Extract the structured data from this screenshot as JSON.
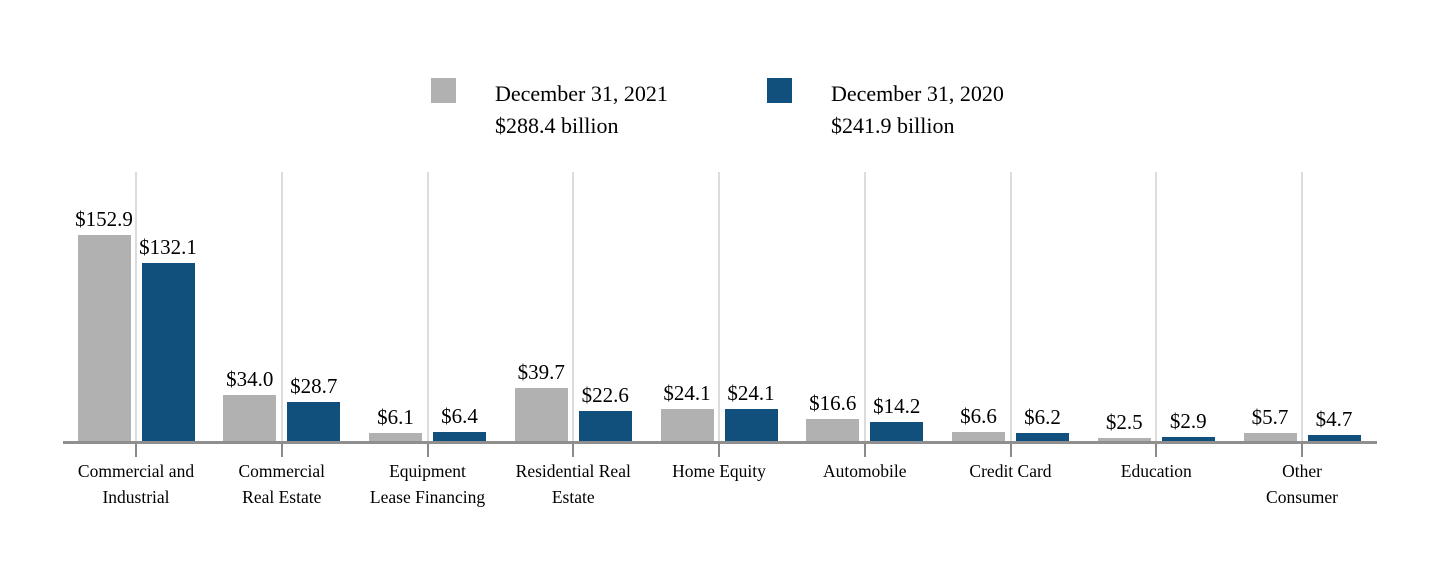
{
  "legend": [
    {
      "label": "December 31, 2021",
      "total": "$288.4 billion",
      "color": "#B1B1B1"
    },
    {
      "label": "December 31, 2020",
      "total": "$241.9 billion",
      "color": "#11507D"
    }
  ],
  "chart_data": {
    "type": "bar",
    "title": "",
    "xlabel": "",
    "ylabel": "",
    "y_axis": "hidden",
    "grid": "vertical-gridline-per-category",
    "legend_position": "top-center",
    "value_prefix": "$",
    "value_unit": "billions",
    "ylim": [
      0,
      200
    ],
    "categories": [
      "Commercial and Industrial",
      "Commercial Real Estate",
      "Equipment Lease Financing",
      "Residential Real Estate",
      "Home Equity",
      "Automobile",
      "Credit Card",
      "Education",
      "Other Consumer"
    ],
    "category_lines": [
      [
        "Commercial and",
        "Industrial"
      ],
      [
        "Commercial",
        "Real Estate"
      ],
      [
        "Equipment",
        "Lease Financing"
      ],
      [
        "Residential Real",
        "Estate"
      ],
      [
        "Home Equity"
      ],
      [
        "Automobile"
      ],
      [
        "Credit Card"
      ],
      [
        "Education"
      ],
      [
        "Other",
        "Consumer"
      ]
    ],
    "series": [
      {
        "name": "December 31, 2021",
        "total": "$288.4 billion",
        "color": "#B1B1B1",
        "values": [
          152.9,
          34.0,
          6.1,
          39.7,
          24.1,
          16.6,
          6.6,
          2.5,
          5.7
        ],
        "labels": [
          "$152.9",
          "$34.0",
          "$6.1",
          "$39.7",
          "$24.1",
          "$16.6",
          "$6.6",
          "$2.5",
          "$5.7"
        ]
      },
      {
        "name": "December 31, 2020",
        "total": "$241.9 billion",
        "color": "#11507D",
        "values": [
          132.1,
          28.7,
          6.4,
          22.6,
          24.1,
          14.2,
          6.2,
          2.9,
          4.7
        ],
        "labels": [
          "$132.1",
          "$28.7",
          "$6.4",
          "$22.6",
          "$24.1",
          "$14.2",
          "$6.2",
          "$2.9",
          "$4.7"
        ]
      }
    ]
  }
}
